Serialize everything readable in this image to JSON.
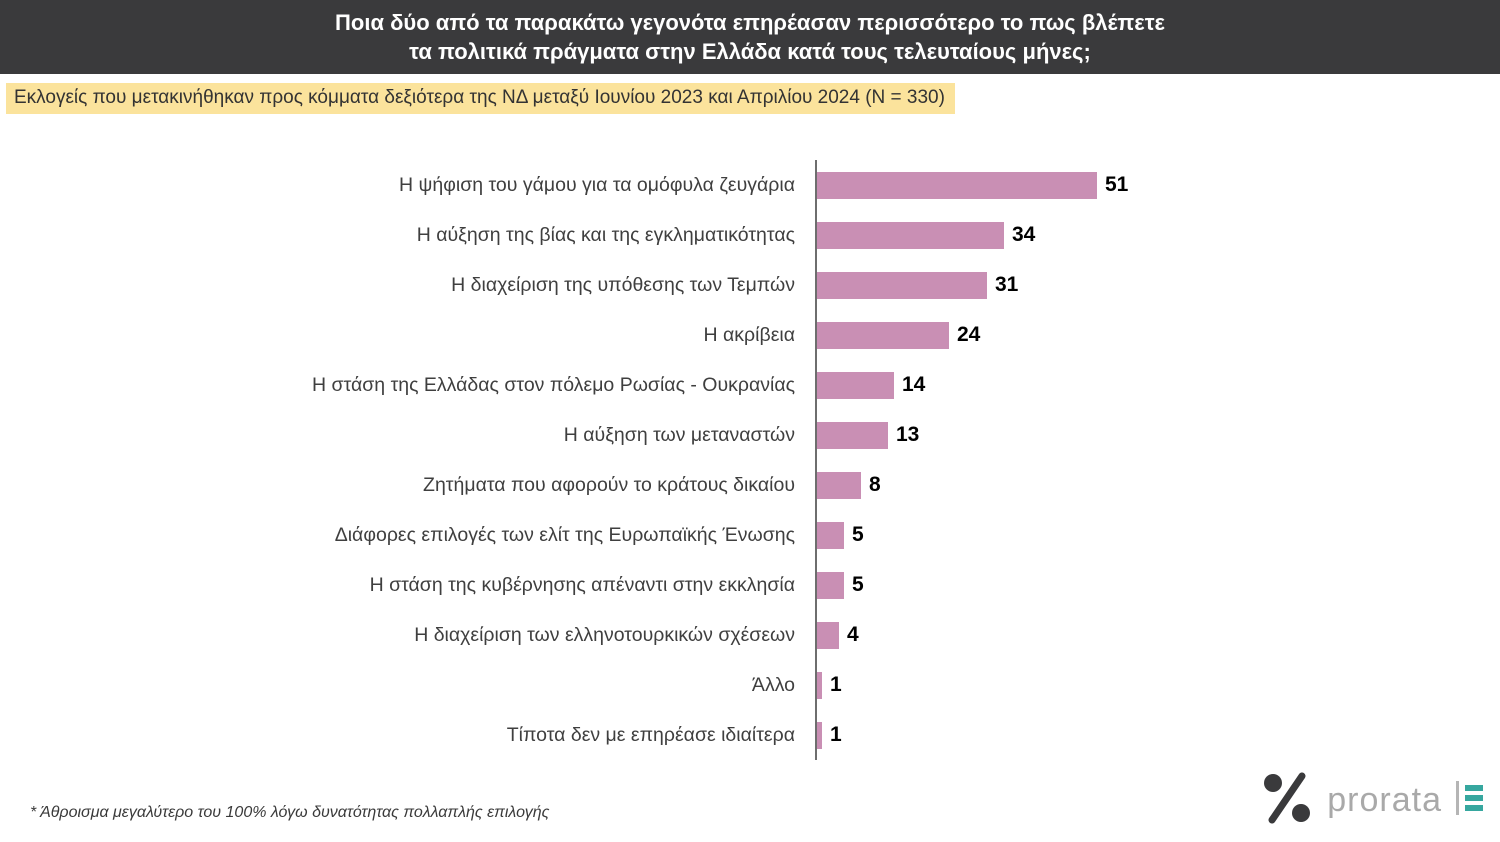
{
  "header": {
    "title_line1": "Ποια δύο από τα παρακάτω γεγονότα επηρέασαν περισσότερο το πως βλέπετε",
    "title_line2": "τα πολιτικά πράγματα στην Ελλάδα κατά τους τελευταίους μήνες;",
    "bg_color": "#3a3a3c",
    "text_color": "#ffffff"
  },
  "subtitle": {
    "text": "Εκλογείς που μετακινήθηκαν προς κόμματα δεξιότερα της ΝΔ μεταξύ Ιουνίου 2023 και Απριλίου 2024 (N = 330)",
    "bg_color": "#fbe39c"
  },
  "chart_data": {
    "type": "bar",
    "orientation": "horizontal",
    "categories": [
      "Η ψήφιση του γάμου για τα ομόφυλα ζευγάρια",
      "Η αύξηση της βίας και της εγκληματικότητας",
      "Η διαχείριση της υπόθεσης των Τεμπών",
      "Η ακρίβεια",
      "Η στάση της Ελλάδας στον πόλεμο Ρωσίας - Ουκρανίας",
      "Η αύξηση των μεταναστών",
      "Ζητήματα που αφορούν το κράτους δικαίου",
      "Διάφορες επιλογές των ελίτ της Ευρωπαϊκής Ένωσης",
      "Η στάση της κυβέρνησης απέναντι στην εκκλησία",
      "Η διαχείριση των ελληνοτουρκικών σχέσεων",
      "Άλλο",
      "Τίποτα δεν με επηρέασε ιδιαίτερα"
    ],
    "values": [
      51,
      34,
      31,
      24,
      14,
      13,
      8,
      5,
      5,
      4,
      1,
      1
    ],
    "title": "",
    "xlabel": "",
    "ylabel": "",
    "xlim": [
      0,
      55
    ],
    "grid": false,
    "legend": false,
    "data_labels": true,
    "bar_color": "#c98fb4",
    "value_label_color": "#000000"
  },
  "footnote": "* Άθροισμα μεγαλύτερο του 100% λόγω δυνατότητας πολλαπλής επιλογής",
  "logo": {
    "wordmark": "prorata",
    "icon_color": "#3a3a3c",
    "accent_color": "#36a79f"
  }
}
